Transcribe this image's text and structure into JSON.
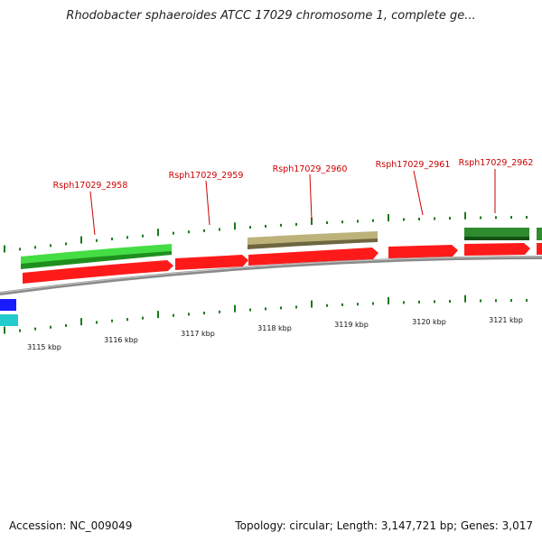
{
  "title": "Rhodobacter sphaeroides ATCC 17029 chromosome 1, complete ge...",
  "footer": {
    "accession": "Accession: NC_009049",
    "summary": "Topology: circular; Length: 3,147,721 bp; Genes: 3,017"
  },
  "colors": {
    "label": "#cc0000",
    "tick": "#1a7a1a",
    "backbone": "#8a8a8a",
    "red_gene": "#ff1a1a",
    "light_green_gene": "#44dd44",
    "khaki_gene": "#bdb27a",
    "dark_green_gene": "#2e8b2e",
    "blue_gene": "#1a1aff",
    "cyan_gene": "#22cccc"
  },
  "gene_labels": [
    "Rsph17029_2958",
    "Rsph17029_2959",
    "Rsph17029_2960",
    "Rsph17029_2961",
    "Rsph17029_2962"
  ],
  "kbp_labels": [
    "3115 kbp",
    "3116 kbp",
    "3117 kbp",
    "3118 kbp",
    "3119 kbp",
    "3120 kbp",
    "3121 kbp"
  ]
}
